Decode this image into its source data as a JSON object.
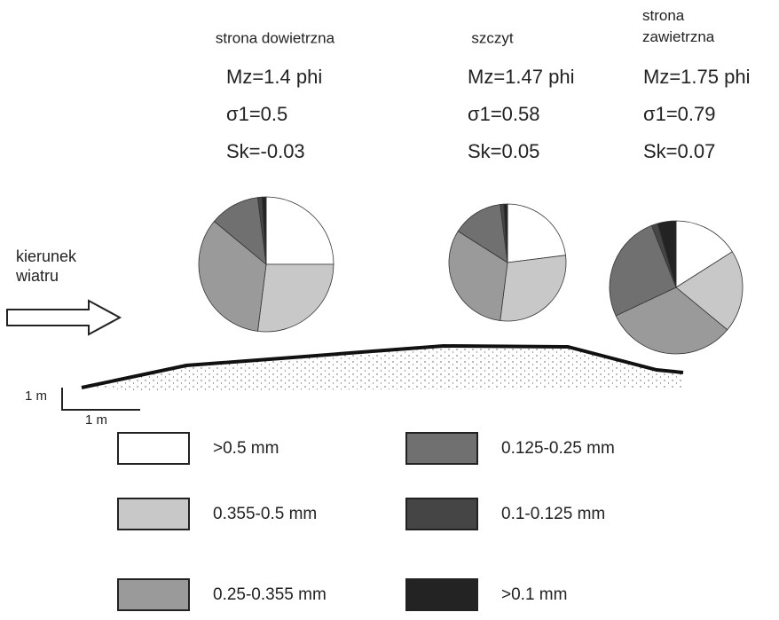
{
  "chart_data": [
    {
      "type": "pie",
      "title": "strona dowietrzna",
      "stats": [
        "Mz=1.4 phi",
        "σ1=0.5",
        "Sk=-0.03"
      ],
      "values": [
        25,
        27,
        34,
        12,
        1,
        1
      ]
    },
    {
      "type": "pie",
      "title": "szczyt",
      "stats": [
        "Mz=1.47 phi",
        "σ1=0.58",
        "Sk=0.05"
      ],
      "values": [
        23,
        29,
        32,
        14,
        1,
        1
      ]
    },
    {
      "type": "pie",
      "title": "strona zawietrzna",
      "stats": [
        "Mz=1.75 phi",
        "σ1=0.79",
        "Sk=0.07"
      ],
      "values": [
        16,
        20,
        32,
        26,
        1.5,
        4.5
      ]
    }
  ],
  "legend": [
    {
      "label": ">0.5 mm",
      "color": "#ffffff"
    },
    {
      "label": "0.355-0.5 mm",
      "color": "#c8c8c8"
    },
    {
      "label": "0.25-0.355 mm",
      "color": "#9a9a9a"
    },
    {
      "label": "0.125-0.25 mm",
      "color": "#707070"
    },
    {
      "label": "0.1-0.125 mm",
      "color": "#454545"
    },
    {
      "label": ">0.1 mm",
      "color": "#232323"
    }
  ],
  "wind_label": "kierunek wiatru",
  "scale_vertical": "1 m",
  "scale_horizontal": "1 m"
}
